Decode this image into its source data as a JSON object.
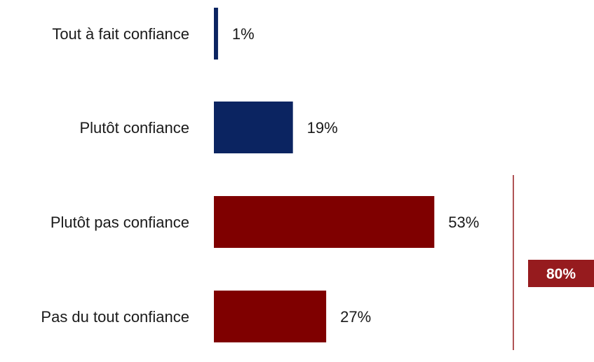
{
  "chart_data": {
    "type": "bar",
    "orientation": "horizontal",
    "categories": [
      "Tout à fait confiance",
      "Plutôt confiance",
      "Plutôt pas confiance",
      "Pas du tout confiance"
    ],
    "values": [
      1,
      19,
      53,
      27
    ],
    "value_labels": [
      "1%",
      "19%",
      "53%",
      "27%"
    ],
    "bar_colors": [
      "#0b2461",
      "#0b2461",
      "#7f0000",
      "#7f0000"
    ],
    "xlim": [
      0,
      100
    ],
    "grid": false,
    "legend": "none",
    "total_bracket": {
      "label": "80%",
      "covers": [
        "Plutôt pas confiance",
        "Pas du tout confiance"
      ],
      "value": 80,
      "color": "#961b1e"
    }
  }
}
